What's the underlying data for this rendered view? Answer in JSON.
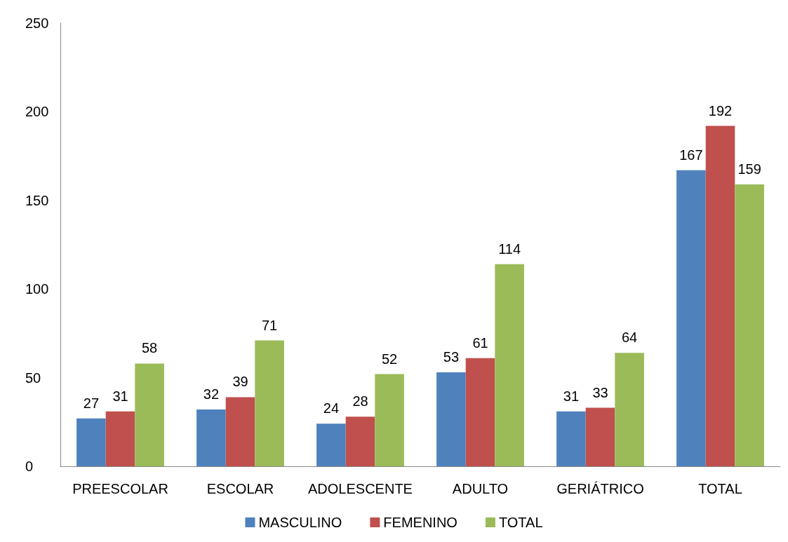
{
  "chart_data": {
    "type": "bar",
    "categories": [
      "PREESCOLAR",
      "ESCOLAR",
      "ADOLESCENTE",
      "ADULTO",
      "GERIÁTRICO",
      "TOTAL"
    ],
    "series": [
      {
        "name": "MASCULINO",
        "color": "#4f81bd",
        "values": [
          27,
          32,
          24,
          53,
          31,
          167
        ]
      },
      {
        "name": "FEMENINO",
        "color": "#c0504d",
        "values": [
          31,
          39,
          28,
          61,
          33,
          192
        ]
      },
      {
        "name": "TOTAL",
        "color": "#9bbb59",
        "values": [
          58,
          71,
          52,
          114,
          64,
          159
        ]
      }
    ],
    "ylim": [
      0,
      250
    ],
    "yticks": [
      0,
      50,
      100,
      150,
      200,
      250
    ],
    "grid": false,
    "legend": "bottom",
    "data_labels": true
  }
}
